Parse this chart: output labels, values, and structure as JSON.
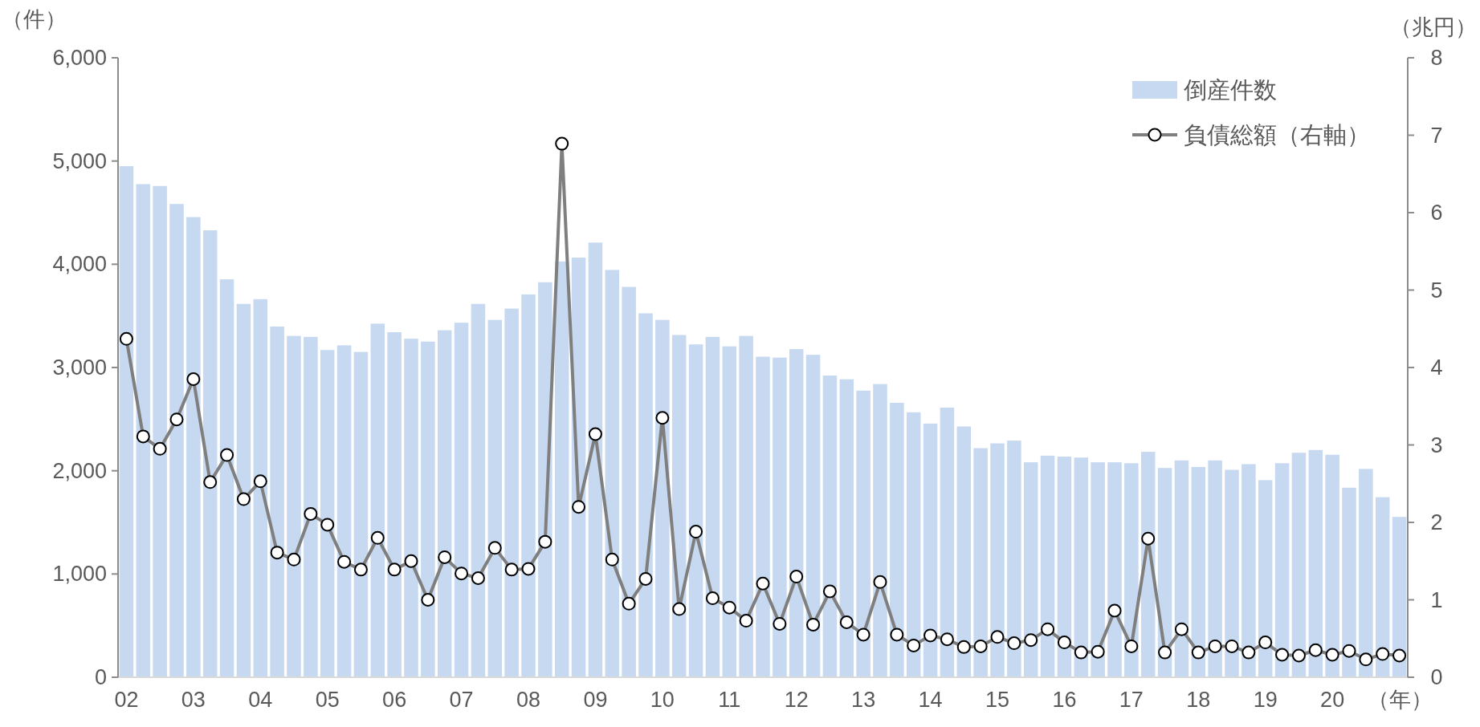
{
  "chart_data": {
    "type": "bar",
    "categories": [
      "02",
      null,
      null,
      null,
      "03",
      null,
      null,
      null,
      "04",
      null,
      null,
      null,
      "05",
      null,
      null,
      null,
      "06",
      null,
      null,
      null,
      "07",
      null,
      null,
      null,
      "08",
      null,
      null,
      null,
      "09",
      null,
      null,
      null,
      "10",
      null,
      null,
      null,
      "11",
      null,
      null,
      null,
      "12",
      null,
      null,
      null,
      "13",
      null,
      null,
      null,
      "14",
      null,
      null,
      null,
      "15",
      null,
      null,
      null,
      "16",
      null,
      null,
      null,
      "17",
      null,
      null,
      null,
      "18",
      null,
      null,
      null,
      "19",
      null,
      null,
      null,
      "20",
      null,
      null,
      null,
      null
    ],
    "series": [
      {
        "name": "倒産件数",
        "color": "#c6d9f1",
        "values": [
          4950,
          4776,
          4758,
          4584,
          4457,
          4329,
          3854,
          3616,
          3662,
          3397,
          3306,
          3297,
          3169,
          3215,
          3151,
          3425,
          3342,
          3279,
          3251,
          3361,
          3434,
          3616,
          3461,
          3571,
          3708,
          3826,
          4027,
          4064,
          4210,
          3945,
          3781,
          3525,
          3461,
          3315,
          3224,
          3297,
          3205,
          3306,
          3105,
          3096,
          3178,
          3123,
          2922,
          2886,
          2776,
          2840,
          2658,
          2566,
          2457,
          2612,
          2429,
          2219,
          2265,
          2292,
          2082,
          2146,
          2137,
          2128,
          2082,
          2082,
          2073,
          2183,
          2027,
          2100,
          2037,
          2100,
          2009,
          2064,
          1909,
          2073,
          2174,
          2201,
          2155,
          1836,
          2018,
          1744,
          1553
        ]
      },
      {
        "name": "負債総額（右軸）",
        "type": "line",
        "axis": "y2",
        "color": "#7f7f7f",
        "values": [
          4.37,
          3.11,
          2.95,
          3.33,
          3.85,
          2.52,
          2.87,
          2.3,
          2.53,
          1.61,
          1.52,
          2.11,
          1.97,
          1.49,
          1.39,
          1.8,
          1.39,
          1.5,
          1.0,
          1.55,
          1.34,
          1.28,
          1.67,
          1.39,
          1.4,
          1.75,
          6.89,
          2.2,
          3.14,
          1.52,
          0.95,
          1.27,
          3.35,
          0.88,
          1.88,
          1.02,
          0.9,
          0.73,
          1.21,
          0.69,
          1.3,
          0.68,
          1.11,
          0.71,
          0.55,
          1.23,
          0.55,
          0.41,
          0.54,
          0.49,
          0.39,
          0.4,
          0.52,
          0.44,
          0.48,
          0.62,
          0.45,
          0.32,
          0.33,
          0.86,
          0.4,
          1.79,
          0.32,
          0.62,
          0.32,
          0.4,
          0.4,
          0.32,
          0.45,
          0.29,
          0.28,
          0.35,
          0.29,
          0.34,
          0.23,
          0.3,
          0.28
        ]
      }
    ],
    "ylabel": "（件）",
    "y2label": "（兆円）",
    "xlabel": "（年）",
    "ylim": [
      0,
      6000
    ],
    "yticks": [
      0,
      {
        "value": 1000,
        "label": "1,000"
      },
      {
        "value": 2000,
        "label": "2,000"
      },
      {
        "value": 3000,
        "label": "3,000"
      },
      {
        "value": 4000,
        "label": "4,000"
      },
      {
        "value": 5000,
        "label": "5,000"
      },
      {
        "value": 6000,
        "label": "6,000"
      }
    ],
    "y2lim": [
      0,
      8
    ],
    "y2ticks": [
      0,
      1,
      2,
      3,
      4,
      5,
      6,
      7,
      8
    ],
    "legend": "top right",
    "marker": "circle",
    "line_style": "solid"
  }
}
